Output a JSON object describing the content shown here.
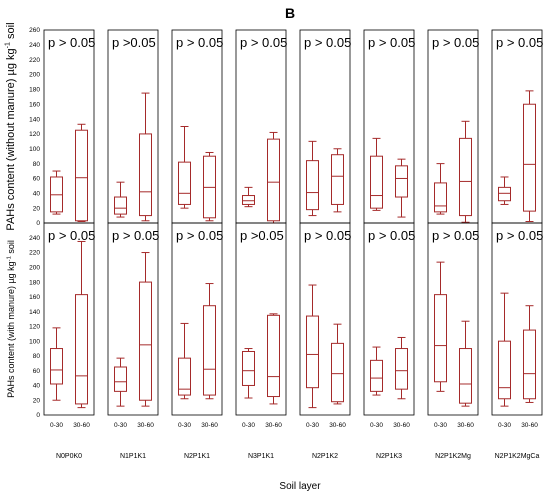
{
  "chart_data": {
    "type": "box",
    "title": "B",
    "xlabel": "Soil layer",
    "layers": [
      "0-30",
      "30-60"
    ],
    "treatments": [
      "N0P0K0",
      "N1P1K1",
      "N2P1K1",
      "N3P1K1",
      "N2P1K2",
      "N2P1K3",
      "N2P1K2Mg",
      "N2P1K2MgCa"
    ],
    "ylim": [
      0,
      260
    ],
    "yticks": [
      0,
      20,
      40,
      60,
      80,
      100,
      120,
      140,
      160,
      180,
      200,
      220,
      240,
      260
    ],
    "colors": {
      "box": "#a52a2a",
      "frame": "#000000"
    },
    "rows": [
      {
        "ylabel_main": "PAHs content (without manure) µg kg",
        "ylabel_sup": "-1",
        "ylabel_end": " soil",
        "pvalues": [
          "p > 0.05",
          "p >0.05",
          "p > 0.05",
          "p > 0.05",
          "p > 0.05",
          "p > 0.05",
          "p > 0.05",
          "p > 0.05"
        ],
        "boxes": [
          [
            {
              "min": 12,
              "q1": 15,
              "median": 38,
              "q3": 62,
              "max": 70
            },
            {
              "min": 2,
              "q1": 3,
              "median": 61,
              "q3": 125,
              "max": 133
            }
          ],
          [
            {
              "min": 8,
              "q1": 12,
              "median": 20,
              "q3": 35,
              "max": 55
            },
            {
              "min": 3,
              "q1": 10,
              "median": 42,
              "q3": 120,
              "max": 175
            }
          ],
          [
            {
              "min": 20,
              "q1": 25,
              "median": 40,
              "q3": 82,
              "max": 130
            },
            {
              "min": 3,
              "q1": 7,
              "median": 48,
              "q3": 90,
              "max": 95
            }
          ],
          [
            {
              "min": 22,
              "q1": 25,
              "median": 30,
              "q3": 37,
              "max": 48
            },
            {
              "min": 0,
              "q1": 3,
              "median": 55,
              "q3": 113,
              "max": 122
            }
          ],
          [
            {
              "min": 10,
              "q1": 18,
              "median": 41,
              "q3": 84,
              "max": 110
            },
            {
              "min": 15,
              "q1": 25,
              "median": 63,
              "q3": 92,
              "max": 100
            }
          ],
          [
            {
              "min": 17,
              "q1": 20,
              "median": 37,
              "q3": 90,
              "max": 114
            },
            {
              "min": 8,
              "q1": 35,
              "median": 60,
              "q3": 77,
              "max": 86
            }
          ],
          [
            {
              "min": 12,
              "q1": 15,
              "median": 23,
              "q3": 54,
              "max": 80
            },
            {
              "min": 1,
              "q1": 10,
              "median": 56,
              "q3": 114,
              "max": 137
            }
          ],
          [
            {
              "min": 25,
              "q1": 30,
              "median": 40,
              "q3": 48,
              "max": 62
            },
            {
              "min": 2,
              "q1": 16,
              "median": 79,
              "q3": 160,
              "max": 178
            }
          ]
        ]
      },
      {
        "ylabel_main": "PAHs content (with manure) µg kg",
        "ylabel_sup": "-1",
        "ylabel_end": " soil",
        "pvalues": [
          "p > 0.05",
          "p > 0.05",
          "p > 0.05",
          "p >0.05",
          "p > 0.05",
          "p > 0.05",
          "p > 0.05",
          "p > 0.05"
        ],
        "boxes": [
          [
            {
              "min": 20,
              "q1": 42,
              "median": 61,
              "q3": 90,
              "max": 118
            },
            {
              "min": 10,
              "q1": 15,
              "median": 53,
              "q3": 163,
              "max": 235
            }
          ],
          [
            {
              "min": 12,
              "q1": 32,
              "median": 45,
              "q3": 65,
              "max": 77
            },
            {
              "min": 12,
              "q1": 20,
              "median": 95,
              "q3": 180,
              "max": 220
            }
          ],
          [
            {
              "min": 22,
              "q1": 27,
              "median": 35,
              "q3": 77,
              "max": 124
            },
            {
              "min": 22,
              "q1": 27,
              "median": 62,
              "q3": 148,
              "max": 178
            }
          ],
          [
            {
              "min": 23,
              "q1": 40,
              "median": 60,
              "q3": 86,
              "max": 90
            },
            {
              "min": 15,
              "q1": 25,
              "median": 52,
              "q3": 135,
              "max": 137
            }
          ],
          [
            {
              "min": 10,
              "q1": 37,
              "median": 82,
              "q3": 134,
              "max": 176
            },
            {
              "min": 15,
              "q1": 18,
              "median": 56,
              "q3": 97,
              "max": 123
            }
          ],
          [
            {
              "min": 27,
              "q1": 32,
              "median": 50,
              "q3": 74,
              "max": 92
            },
            {
              "min": 22,
              "q1": 35,
              "median": 60,
              "q3": 90,
              "max": 105
            }
          ],
          [
            {
              "min": 32,
              "q1": 45,
              "median": 94,
              "q3": 163,
              "max": 207
            },
            {
              "min": 12,
              "q1": 16,
              "median": 42,
              "q3": 90,
              "max": 127
            }
          ],
          [
            {
              "min": 12,
              "q1": 22,
              "median": 37,
              "q3": 100,
              "max": 165
            },
            {
              "min": 17,
              "q1": 22,
              "median": 56,
              "q3": 115,
              "max": 148
            }
          ]
        ]
      }
    ]
  }
}
